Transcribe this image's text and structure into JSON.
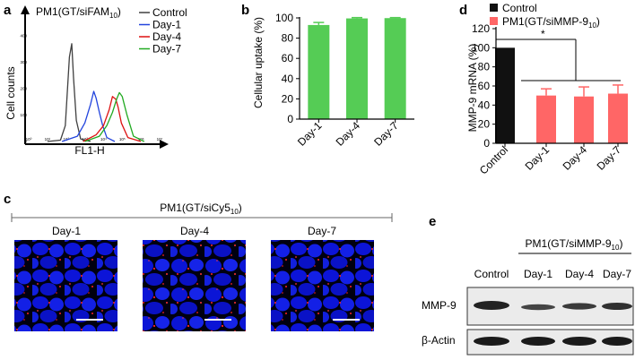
{
  "panels": {
    "a": {
      "letter": "a"
    },
    "b": {
      "letter": "b"
    },
    "c": {
      "letter": "c"
    },
    "d": {
      "letter": "d"
    },
    "e": {
      "letter": "e"
    }
  },
  "chart_data": [
    {
      "id": "a",
      "type": "line",
      "title_main": "PM1(GT/siFAM",
      "title_sub": "10",
      "title_end": ")",
      "xlabel": "FL1-H",
      "ylabel": "Cell counts",
      "x_scale": "log",
      "xlim": [
        1,
        10000000
      ],
      "ylim": [
        0,
        400
      ],
      "xtick_labels": [
        "10⁰",
        "10¹",
        "10²",
        "10³",
        "10⁴",
        "10⁵",
        "10⁶",
        "10⁷"
      ],
      "ytick_labels": [
        "0",
        "100",
        "200",
        "300",
        "400"
      ],
      "legend_position": "top-right",
      "series": [
        {
          "name": "Control",
          "color": "#404040",
          "x": [
            10,
            50,
            90,
            150,
            200,
            250,
            350,
            600,
            2000
          ],
          "y": [
            0,
            5,
            60,
            320,
            370,
            240,
            80,
            10,
            0
          ]
        },
        {
          "name": "Day-1",
          "color": "#2244dd",
          "x": [
            60,
            400,
            1000,
            2000,
            3000,
            4000,
            6000,
            9000,
            15000,
            40000
          ],
          "y": [
            0,
            20,
            70,
            140,
            190,
            165,
            110,
            60,
            15,
            0
          ]
        },
        {
          "name": "Day-4",
          "color": "#dd1111",
          "x": [
            800,
            4000,
            10000,
            20000,
            30000,
            45000,
            60000,
            90000,
            200000,
            1000000
          ],
          "y": [
            0,
            25,
            60,
            120,
            170,
            160,
            130,
            70,
            15,
            0
          ]
        },
        {
          "name": "Day-7",
          "color": "#22aa22",
          "x": [
            1000,
            6000,
            15000,
            30000,
            50000,
            70000,
            100000,
            180000,
            400000,
            1500000
          ],
          "y": [
            0,
            20,
            60,
            110,
            160,
            185,
            170,
            100,
            20,
            0
          ]
        }
      ]
    },
    {
      "id": "b",
      "type": "bar",
      "ylabel": "Cellular uptake (%)",
      "ylim": [
        0,
        100
      ],
      "ytick_labels": [
        "0",
        "20",
        "40",
        "60",
        "80",
        "100"
      ],
      "categories": [
        "Day-1",
        "Day-4",
        "Day-7"
      ],
      "values": [
        93,
        99.5,
        99.8
      ],
      "errors": [
        2.5,
        0.8,
        0.5
      ],
      "bar_color": "#55cc55"
    },
    {
      "id": "d",
      "type": "bar",
      "ylabel": "MMP-9 mRNA (%)",
      "ylim": [
        0,
        120
      ],
      "ytick_labels": [
        "0",
        "20",
        "40",
        "60",
        "80",
        "100",
        "120"
      ],
      "categories": [
        "Control",
        "Day-1",
        "Day-4",
        "Day-7"
      ],
      "values": [
        100,
        50,
        49,
        52
      ],
      "errors": [
        0,
        7,
        10,
        9
      ],
      "colors": [
        "#111111",
        "#ff6666",
        "#ff6666",
        "#ff6666"
      ],
      "legend": [
        {
          "label": "Control",
          "color": "#111111"
        },
        {
          "label_main": "PM1(GT/siMMP-9",
          "label_sub": "10",
          "label_end": ")",
          "color": "#ff6666"
        }
      ],
      "significance": "*"
    }
  ],
  "panel_c": {
    "header_main": "PM1(GT/siCy5",
    "header_sub": "10",
    "header_end": ")",
    "labels": [
      "Day-1",
      "Day-4",
      "Day-7"
    ]
  },
  "panel_e": {
    "header_main": "PM1(GT/siMMP-9",
    "header_sub": "10",
    "header_end": ")",
    "columns": [
      "Control",
      "Day-1",
      "Day-4",
      "Day-7"
    ],
    "rows": [
      "MMP-9",
      "β-Actin"
    ]
  }
}
